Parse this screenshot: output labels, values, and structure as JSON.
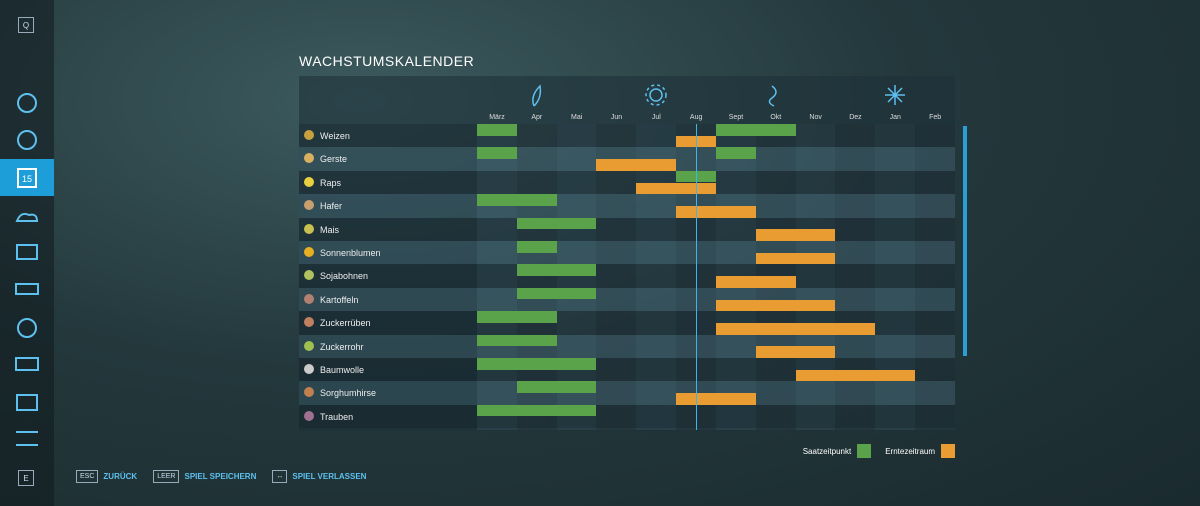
{
  "sidebar": {
    "top_key": "Q",
    "bottom_key": "E"
  },
  "title": "WACHSTUMSKALENDER",
  "months": [
    "März",
    "Apr",
    "Mai",
    "Jun",
    "Jul",
    "Aug",
    "Sept",
    "Okt",
    "Nov",
    "Dez",
    "Jan",
    "Feb"
  ],
  "crops": [
    {
      "name": "Weizen",
      "sowing": [
        [
          "März",
          "März"
        ],
        [
          "Sept",
          "Okt"
        ]
      ],
      "harvest": [
        [
          "Aug",
          "Aug"
        ]
      ]
    },
    {
      "name": "Gerste",
      "sowing": [
        [
          "März",
          "März"
        ],
        [
          "Sept",
          "Sept"
        ]
      ],
      "harvest": [
        [
          "Jun",
          "Jul"
        ]
      ]
    },
    {
      "name": "Raps",
      "sowing": [
        [
          "Aug",
          "Aug"
        ]
      ],
      "harvest": [
        [
          "Jul",
          "Aug"
        ]
      ]
    },
    {
      "name": "Hafer",
      "sowing": [
        [
          "März",
          "Apr"
        ]
      ],
      "harvest": [
        [
          "Aug",
          "Sept"
        ]
      ]
    },
    {
      "name": "Mais",
      "sowing": [
        [
          "Apr",
          "Mai"
        ]
      ],
      "harvest": [
        [
          "Okt",
          "Nov"
        ]
      ]
    },
    {
      "name": "Sonnenblumen",
      "sowing": [
        [
          "Apr",
          "Apr"
        ]
      ],
      "harvest": [
        [
          "Okt",
          "Nov"
        ]
      ]
    },
    {
      "name": "Sojabohnen",
      "sowing": [
        [
          "Apr",
          "Mai"
        ]
      ],
      "harvest": [
        [
          "Sept",
          "Okt"
        ]
      ]
    },
    {
      "name": "Kartoffeln",
      "sowing": [
        [
          "Apr",
          "Mai"
        ]
      ],
      "harvest": [
        [
          "Sept",
          "Nov"
        ]
      ]
    },
    {
      "name": "Zuckerrüben",
      "sowing": [
        [
          "März",
          "Apr"
        ]
      ],
      "harvest": [
        [
          "Sept",
          "Dez"
        ]
      ]
    },
    {
      "name": "Zuckerrohr",
      "sowing": [
        [
          "März",
          "Apr"
        ]
      ],
      "harvest": [
        [
          "Okt",
          "Nov"
        ]
      ]
    },
    {
      "name": "Baumwolle",
      "sowing": [
        [
          "März",
          "Mai"
        ]
      ],
      "harvest": [
        [
          "Nov",
          "Jan"
        ]
      ]
    },
    {
      "name": "Sorghumhirse",
      "sowing": [
        [
          "Apr",
          "Mai"
        ]
      ],
      "harvest": [
        [
          "Aug",
          "Sept"
        ]
      ]
    },
    {
      "name": "Trauben",
      "sowing": [
        [
          "März",
          "Mai"
        ]
      ],
      "harvest": []
    }
  ],
  "legend": {
    "sowing": "Saatzeitpunkt",
    "harvest": "Erntezeitraum"
  },
  "footer": [
    {
      "key": "ESC",
      "label": "ZURÜCK"
    },
    {
      "key": "LEER",
      "label": "SPIEL SPEICHERN"
    },
    {
      "key": "↔",
      "label": "SPIEL VERLASSEN"
    }
  ]
}
